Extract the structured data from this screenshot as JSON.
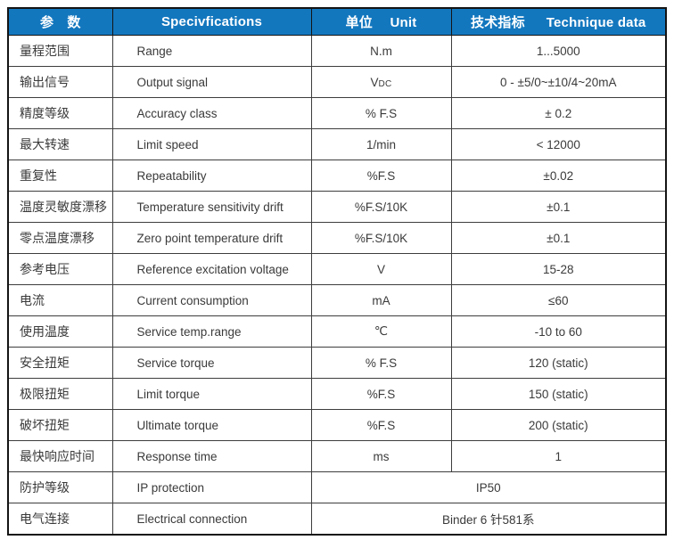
{
  "table_title": "Torque sensor technical specifications table",
  "colors": {
    "header_bg": "#1377BE",
    "header_text": "#FFFFFF",
    "body_text": "#3A3A3A",
    "border": "#3D3D3D",
    "outer_border": "#141414"
  },
  "header": {
    "param": "参　数",
    "spec": "Specivfications",
    "unit": "单位　 Unit",
    "data": "技术指标　  Technique data"
  },
  "rows": [
    {
      "param": "量程范围",
      "spec": "Range",
      "unit": "N.m",
      "value": "1...5000"
    },
    {
      "param": "输出信号",
      "spec": "Output signal",
      "unit": "V",
      "unit_sub": "DC",
      "value": "0 - ±5/0~±10/4~20mA"
    },
    {
      "param": "精度等级",
      "spec": "Accuracy class",
      "unit": "% F.S",
      "value": "± 0.2"
    },
    {
      "param": "最大转速",
      "spec": "Limit speed",
      "unit": "1/min",
      "value": "< 12000"
    },
    {
      "param": "重复性",
      "spec": "Repeatability",
      "unit": "%F.S",
      "value": "±0.02"
    },
    {
      "param": "温度灵敏度漂移",
      "spec": "Temperature sensitivity drift",
      "unit": "%F.S/10K",
      "value": "±0.1"
    },
    {
      "param": "零点温度漂移",
      "spec": "Zero point temperature drift",
      "unit": "%F.S/10K",
      "value": "±0.1"
    },
    {
      "param": "参考电压",
      "spec": "Reference excitation voltage",
      "unit": "V",
      "value": "15-28"
    },
    {
      "param": "电流",
      "spec": "Current consumption",
      "unit": "mA",
      "value": "≤60"
    },
    {
      "param": "使用温度",
      "spec": "Service temp.range",
      "unit": "℃",
      "value": "-10 to 60"
    },
    {
      "param": "安全扭矩",
      "spec": "Service torque",
      "unit": "% F.S",
      "value": "120 (static)"
    },
    {
      "param": "极限扭矩",
      "spec": "Limit torque",
      "unit": "%F.S",
      "value": "150 (static)"
    },
    {
      "param": "破坏扭矩",
      "spec": "Ultimate torque",
      "unit": "%F.S",
      "value": "200 (static)"
    },
    {
      "param": "最快响应时间",
      "spec": "Response time",
      "unit": "ms",
      "value": "1"
    },
    {
      "param": "防护等级",
      "spec": "IP protection",
      "merged": true,
      "value": "IP50"
    },
    {
      "param": "电气连接",
      "spec": "Electrical connection",
      "merged": true,
      "value": "Binder 6 针581系"
    }
  ]
}
